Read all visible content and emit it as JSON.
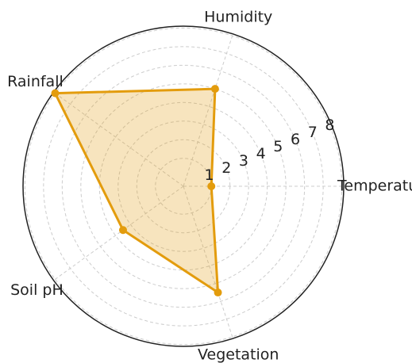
{
  "chart_data": {
    "type": "radar",
    "categories": [
      "Temperature",
      "Humidity",
      "Rainfall",
      "Soil pH",
      "Vegetation"
    ],
    "values": [
      1,
      5,
      8,
      3.5,
      5.5
    ],
    "color": "#e39c0d",
    "ylim": [
      -0.5,
      8.1
    ],
    "yticks": [
      1,
      2,
      3,
      4,
      5,
      6,
      7,
      8
    ],
    "grid": true
  }
}
